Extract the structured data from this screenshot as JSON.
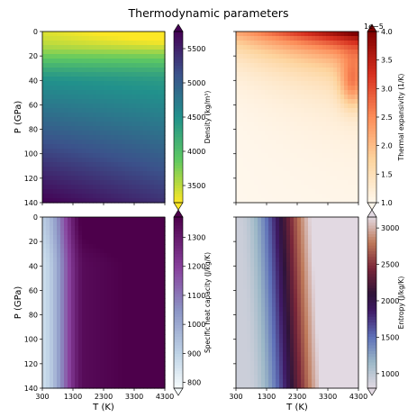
{
  "figure": {
    "title": "Thermodynamic parameters"
  },
  "colors": {
    "density_cmap": "viridis_r",
    "expansivity_cmap": "OrRd",
    "heat_capacity_cmap": "BuPu",
    "entropy_cmap": "twilight"
  },
  "chart_data": [
    {
      "type": "heatmap",
      "panel": "top-left",
      "xlim": [
        300,
        4300
      ],
      "ylim": [
        140,
        0
      ],
      "xticks": [],
      "yticks": [
        0,
        20,
        40,
        60,
        80,
        100,
        120,
        140
      ],
      "xlabel": "",
      "ylabel": "P (GPa)",
      "colorbar": {
        "label": "Density (kg/m³)",
        "ticks": [
          3500,
          4000,
          4500,
          5000,
          5500
        ],
        "range": [
          3250,
          5750
        ],
        "extend": "both",
        "scale_note": ""
      }
    },
    {
      "type": "heatmap",
      "panel": "top-right",
      "xlim": [
        300,
        4300
      ],
      "ylim": [
        140,
        0
      ],
      "xticks": [],
      "yticks": [],
      "xlabel": "",
      "ylabel": "",
      "colorbar": {
        "label": "Thermal expansivity (1/K)",
        "ticks": [
          "1.0",
          "1.5",
          "2.0",
          "2.5",
          "3.0",
          "3.5",
          "4.0"
        ],
        "range": [
          1.0,
          4.0
        ],
        "extend": "both",
        "scale_note": "1e−5"
      }
    },
    {
      "type": "heatmap",
      "panel": "bottom-left",
      "xlim": [
        300,
        4300
      ],
      "ylim": [
        140,
        0
      ],
      "xticks": [
        300,
        1300,
        2300,
        3300,
        4300
      ],
      "yticks": [
        0,
        20,
        40,
        60,
        80,
        100,
        120,
        140
      ],
      "xlabel": "T (K)",
      "ylabel": "P (GPa)",
      "colorbar": {
        "label": "Specific heat capacity (J/kg/K)",
        "ticks": [
          800,
          900,
          1000,
          1100,
          1200,
          1300
        ],
        "range": [
          780,
          1370
        ],
        "extend": "both",
        "scale_note": ""
      }
    },
    {
      "type": "heatmap",
      "panel": "bottom-right",
      "xlim": [
        300,
        4300
      ],
      "ylim": [
        140,
        0
      ],
      "xticks": [
        300,
        1300,
        2300,
        3300,
        4300
      ],
      "yticks": [],
      "xlabel": "T (K)",
      "ylabel": "",
      "colorbar": {
        "label": "Entropy (J/kg/K)",
        "ticks": [
          1000,
          1500,
          2000,
          2500,
          3000
        ],
        "range": [
          800,
          3150
        ],
        "extend": "both",
        "scale_note": ""
      }
    }
  ]
}
